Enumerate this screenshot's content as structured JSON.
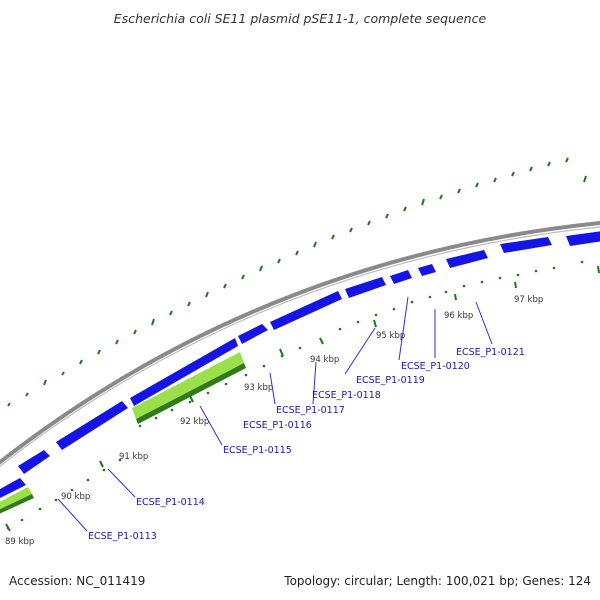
{
  "title": "Escherichia coli SE11 plasmid pSE11-1, complete sequence",
  "footer": {
    "accession": "Accession: NC_011419",
    "summary": "Topology: circular; Length: 100,021 bp; Genes: 124"
  },
  "colors": {
    "backbone": "#8a8a8a",
    "gene_forward": "#1414e6",
    "gene_highlight": "#9be04a",
    "gc_skew": "#1a7a1a",
    "label_text": "#1a1aa6",
    "leader_line": "#3030d0"
  },
  "scale_ticks": [
    {
      "label": "89 kbp",
      "kbp": 89
    },
    {
      "label": "90 kbp",
      "kbp": 90
    },
    {
      "label": "91 kbp",
      "kbp": 91
    },
    {
      "label": "92 kbp",
      "kbp": 92
    },
    {
      "label": "93 kbp",
      "kbp": 93
    },
    {
      "label": "94 kbp",
      "kbp": 94
    },
    {
      "label": "95 kbp",
      "kbp": 95
    },
    {
      "label": "96 kbp",
      "kbp": 96
    },
    {
      "label": "97 kbp",
      "kbp": 97
    }
  ],
  "gene_labels": [
    {
      "label": "ECSE_P1-0113"
    },
    {
      "label": "ECSE_P1-0114"
    },
    {
      "label": "ECSE_P1-0115"
    },
    {
      "label": "ECSE_P1-0116"
    },
    {
      "label": "ECSE_P1-0117"
    },
    {
      "label": "ECSE_P1-0118"
    },
    {
      "label": "ECSE_P1-0119"
    },
    {
      "label": "ECSE_P1-0120"
    },
    {
      "label": "ECSE_P1-0121"
    }
  ]
}
